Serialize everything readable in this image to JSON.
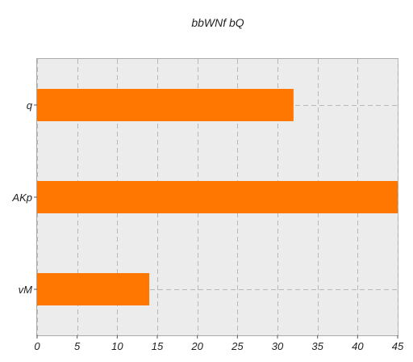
{
  "chart_data": {
    "type": "bar",
    "orientation": "horizontal",
    "title": "bbWNf   bQ",
    "xlabel": "",
    "ylabel": "",
    "categories": [
      "q",
      "AKp",
      "vM"
    ],
    "values": [
      32,
      45,
      14
    ],
    "xlim": [
      0,
      45
    ],
    "xticks": [
      0,
      5,
      10,
      15,
      20,
      25,
      30,
      35,
      40,
      45
    ],
    "grid": true,
    "legend": "none",
    "colors": {
      "bar": "#ff7700",
      "plot_background": "#ececec",
      "grid": "#b8b8b8"
    }
  }
}
